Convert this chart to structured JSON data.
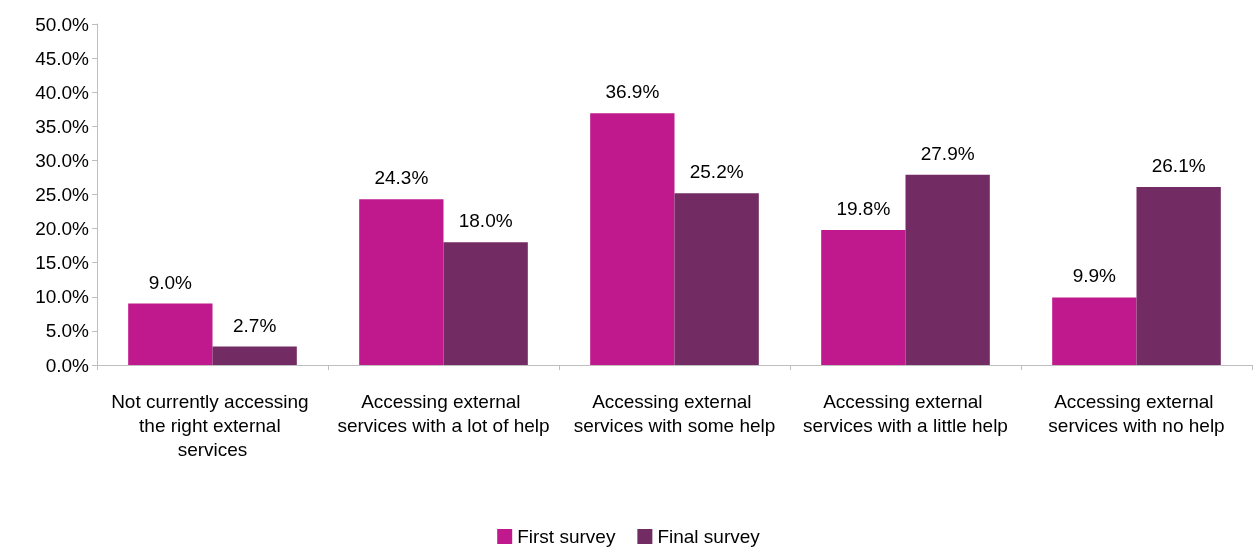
{
  "chart_data": {
    "type": "bar",
    "categories": [
      "Not currently accessing the right external services",
      "Accessing external services with a lot of help",
      "Accessing external services with some help",
      "Accessing external services with a little help",
      "Accessing external services with no help"
    ],
    "series": [
      {
        "name": "First survey",
        "color": "#c0198d",
        "values": [
          9.0,
          24.3,
          36.9,
          19.8,
          9.9
        ],
        "value_labels": [
          "9.0%",
          "24.3%",
          "36.9%",
          "19.8%",
          "9.9%"
        ]
      },
      {
        "name": "Final survey",
        "color": "#722b63",
        "values": [
          2.7,
          18.0,
          25.2,
          27.9,
          26.1
        ],
        "value_labels": [
          "2.7%",
          "18.0%",
          "25.2%",
          "27.9%",
          "26.1%"
        ]
      }
    ],
    "ylim": [
      0,
      50
    ],
    "yticks": [
      {
        "value": 0,
        "label": "0.0%"
      },
      {
        "value": 5,
        "label": "5.0%"
      },
      {
        "value": 10,
        "label": "10.0%"
      },
      {
        "value": 15,
        "label": "15.0%"
      },
      {
        "value": 20,
        "label": "20.0%"
      },
      {
        "value": 25,
        "label": "25.0%"
      },
      {
        "value": 30,
        "label": "30.0%"
      },
      {
        "value": 35,
        "label": "35.0%"
      },
      {
        "value": 40,
        "label": "40.0%"
      },
      {
        "value": 45,
        "label": "45.0%"
      },
      {
        "value": 50,
        "label": "50.0%"
      }
    ],
    "grid": false,
    "legend": "bottom"
  }
}
